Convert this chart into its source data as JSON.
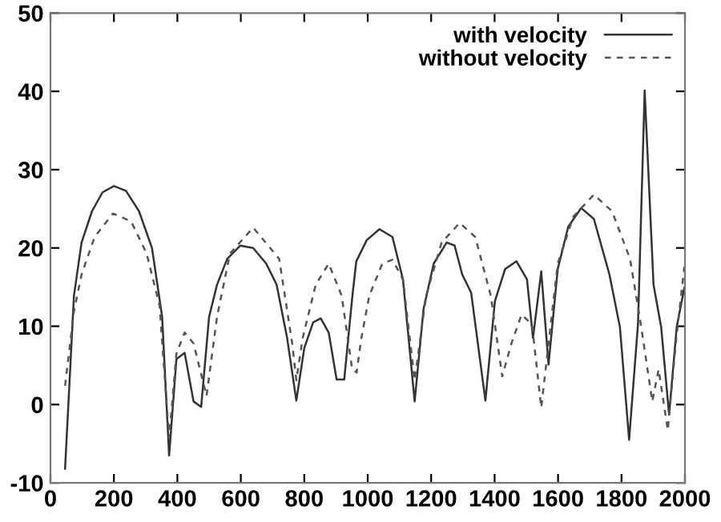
{
  "chart_data": {
    "type": "line",
    "xlim": [
      0,
      2000
    ],
    "ylim": [
      -10,
      50
    ],
    "xticks": [
      0,
      200,
      400,
      600,
      800,
      1000,
      1200,
      1400,
      1600,
      1800,
      2000
    ],
    "yticks": [
      -10,
      0,
      10,
      20,
      30,
      40,
      50
    ],
    "grid": false,
    "legend": "top right",
    "marker": "none",
    "series": [
      {
        "name": "with velocity",
        "color": "#333333",
        "line_style": "solid",
        "x": [
          46,
          74,
          98,
          131,
          164,
          200,
          238,
          279,
          320,
          352,
          374,
          397,
          423,
          451,
          475,
          500,
          525,
          557,
          598,
          639,
          680,
          713,
          746,
          775,
          800,
          828,
          852,
          877,
          902,
          926,
          951,
          964,
          997,
          1037,
          1078,
          1111,
          1148,
          1176,
          1208,
          1249,
          1274,
          1298,
          1326,
          1371,
          1401,
          1433,
          1469,
          1502,
          1521,
          1547,
          1570,
          1599,
          1632,
          1673,
          1713,
          1762,
          1795,
          1824,
          1852,
          1873,
          1901,
          1925,
          1950,
          1974,
          1998
        ],
        "values": [
          -8.2,
          13.9,
          20.7,
          24.7,
          27.1,
          27.9,
          27.3,
          24.7,
          20,
          11.2,
          -6.5,
          5.8,
          6.6,
          0.4,
          -0.3,
          11.2,
          15.3,
          18.6,
          20.3,
          20,
          18,
          15.3,
          8.5,
          0.5,
          7.2,
          10.5,
          11,
          9.2,
          3.2,
          3.2,
          13.6,
          18.3,
          21,
          22.4,
          21.4,
          16,
          0.4,
          12.2,
          18,
          20.7,
          20.3,
          16.6,
          14.3,
          0.5,
          13.2,
          17.3,
          18.3,
          16,
          8.5,
          17,
          5.1,
          17.3,
          22.7,
          25.1,
          23.7,
          16.6,
          9.9,
          -4.5,
          10.3,
          40.1,
          15.3,
          9.9,
          -1.3,
          9.9,
          14.9
        ]
      },
      {
        "name": "without velocity",
        "color": "#555555",
        "line_style": "dashed",
        "x": [
          46,
          74,
          98,
          139,
          197,
          254,
          303,
          344,
          374,
          397,
          423,
          451,
          492,
          525,
          566,
          639,
          721,
          762,
          775,
          795,
          836,
          877,
          918,
          951,
          965,
          980,
          1005,
          1046,
          1078,
          1111,
          1148,
          1184,
          1233,
          1290,
          1339,
          1388,
          1424,
          1453,
          1485,
          1518,
          1547,
          1576,
          1599,
          1648,
          1713,
          1770,
          1827,
          1860,
          1897,
          1917,
          1946,
          1971,
          1998
        ],
        "values": [
          2.4,
          11.9,
          16.6,
          21.4,
          24.4,
          23.4,
          19.3,
          12.6,
          -4.3,
          6.5,
          9.2,
          7.8,
          1.1,
          11.2,
          19.3,
          22.6,
          18.6,
          7.8,
          3.1,
          8.5,
          15.3,
          18,
          13.9,
          4.5,
          4.1,
          8.5,
          13.9,
          18,
          18.5,
          16,
          3.1,
          13.9,
          20.7,
          23.2,
          21.4,
          13.9,
          3.6,
          7.8,
          11.5,
          10.2,
          -0.4,
          9.9,
          18,
          24,
          26.8,
          24.7,
          18.6,
          10.5,
          0.4,
          4.5,
          -3.3,
          7.8,
          17.6
        ]
      }
    ]
  }
}
